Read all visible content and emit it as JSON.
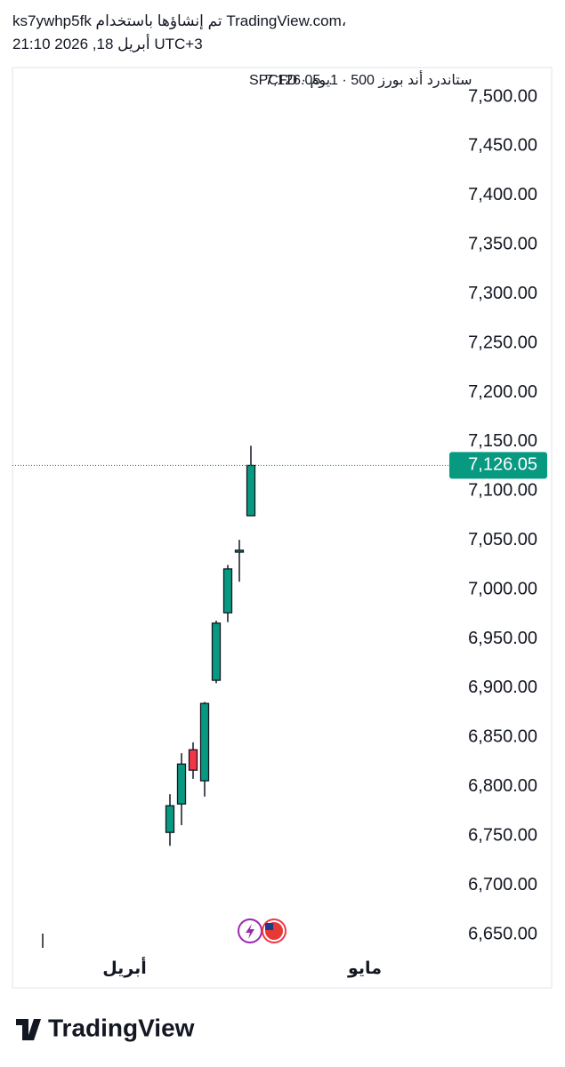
{
  "header": {
    "line1": "ks7ywhp5fk تم إنشاؤها باستخدام TradingView.com،",
    "line2": "21:10 2026 ,18 أبريل UTC+3"
  },
  "footer": {
    "brand": "TradingView"
  },
  "chart_data": {
    "type": "candlestick",
    "title": "ستاندرد أند بورز 500 · 1يوم · SPCFD",
    "legend_value": "7,126.05...",
    "open": [
      6753.6,
      6782.5,
      6837.5,
      6806,
      6908,
      6976.5,
      7038,
      7075
    ],
    "high": [
      6792.4,
      6834,
      6845,
      6886,
      6968.5,
      7025,
      7050.5,
      7146
    ],
    "low": [
      6740,
      6761,
      6808,
      6790,
      6905,
      6967,
      7008,
      7075
    ],
    "close": [
      6780.7,
      6823,
      6816.8,
      6884.5,
      6966,
      7021,
      7040,
      7126.05
    ],
    "up_color": "#089981",
    "down_color": "#f23645",
    "last_price": {
      "value": 7126.05,
      "label": "7,126.05"
    },
    "x_labels": [
      "أبريل",
      "مايو"
    ],
    "ylim": [
      6625,
      7525
    ],
    "yticks": [
      {
        "value": 6650,
        "label": "6,650.00"
      },
      {
        "value": 6700,
        "label": "6,700.00"
      },
      {
        "value": 6750,
        "label": "6,750.00"
      },
      {
        "value": 6800,
        "label": "6,800.00"
      },
      {
        "value": 6850,
        "label": "6,850.00"
      },
      {
        "value": 6900,
        "label": "6,900.00"
      },
      {
        "value": 6950,
        "label": "6,950.00"
      },
      {
        "value": 7000,
        "label": "7,000.00"
      },
      {
        "value": 7050,
        "label": "7,050.00"
      },
      {
        "value": 7100,
        "label": "7,100.00"
      },
      {
        "value": 7150,
        "label": "7,150.00"
      },
      {
        "value": 7200,
        "label": "7,200.00"
      },
      {
        "value": 7250,
        "label": "7,250.00"
      },
      {
        "value": 7300,
        "label": "7,300.00"
      },
      {
        "value": 7350,
        "label": "7,350.00"
      },
      {
        "value": 7400,
        "label": "7,400.00"
      },
      {
        "value": 7450,
        "label": "7,450.00"
      },
      {
        "value": 7500,
        "label": "7,500.00"
      }
    ]
  }
}
